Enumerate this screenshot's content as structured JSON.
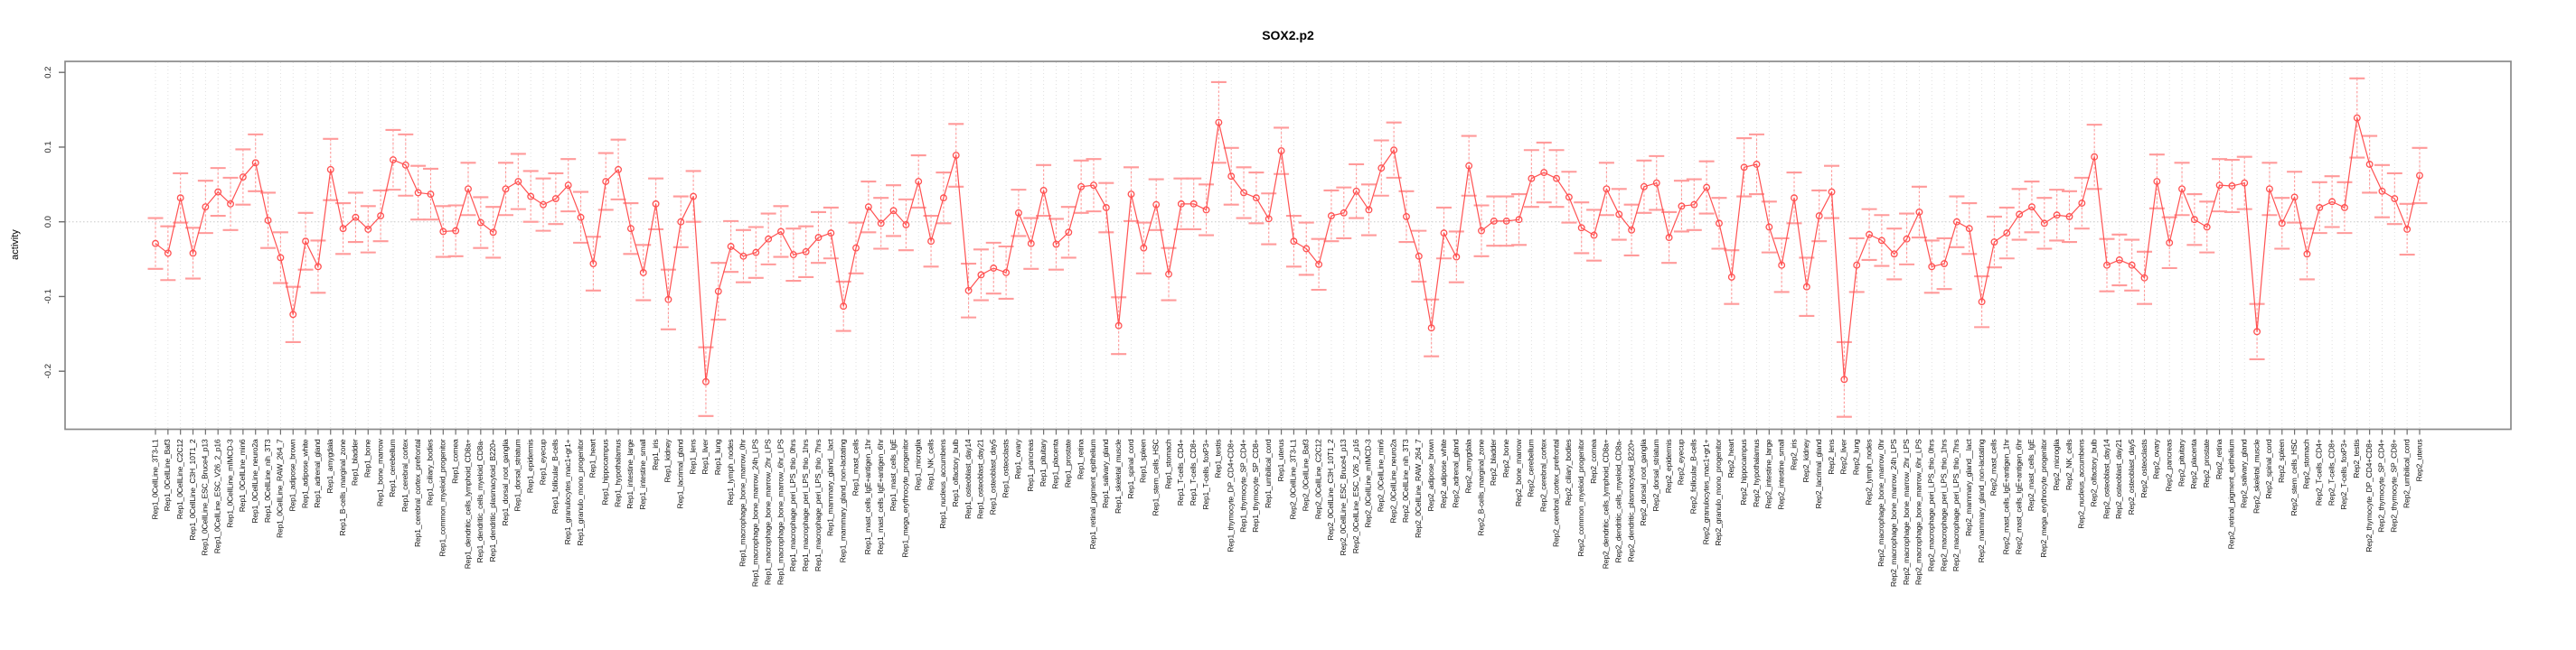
{
  "page": {
    "background": "#ffffff"
  },
  "chart_data": {
    "type": "line",
    "title": "SOX2.p2",
    "ylabel": "activity",
    "xlabel": "",
    "ylim": [
      -0.28,
      0.215
    ],
    "ytick_values": [
      -0.2,
      -0.1,
      0.0,
      0.1,
      0.2
    ],
    "ytick_labels": [
      "-0.2",
      "-0.1",
      "0.0",
      "0.1",
      "0.2"
    ],
    "grid": "dotted vertical gridline at every category; dotted horizontal line at y=0",
    "legend": "none",
    "marker": "open-circle",
    "error_bar_style": "dashed vertical line with solid caps",
    "colors": {
      "series": "#ff5252",
      "error_bars": "#ff9a9a",
      "axis": "#8a8a8a",
      "tick": "#6e6e6e",
      "grid": "#dcdcdc",
      "zero_line": "#c8c8c8",
      "text": "#000000"
    },
    "categories": [
      "Rep1_0CellLine_3T3-L1",
      "Rep1_0CellLine_Baf3",
      "Rep1_0CellLine_C2C12",
      "Rep1_0CellLine_C3H_10T1_2",
      "Rep1_0CellLine_ESC_Bruce4_p13",
      "Rep1_0CellLine_ESC_V26_2_p16",
      "Rep1_0CellLine_mIMCD-3",
      "Rep1_0CellLine_min6",
      "Rep1_0CellLine_neuro2a",
      "Rep1_0CellLine_nih_3T3",
      "Rep1_0CellLine_RAW_264_7",
      "Rep1_adipose_brown",
      "Rep1_adipose_white",
      "Rep1_adrenal_gland",
      "Rep1_amygdala",
      "Rep1_B-cells_marginal_zone",
      "Rep1_bladder",
      "Rep1_bone",
      "Rep1_bone_marrow",
      "Rep1_cerebellum",
      "Rep1_cerebral_cortex",
      "Rep1_cerebral_cortex_prefrontal",
      "Rep1_ciliary_bodies",
      "Rep1_common_myeloid_progenitor",
      "Rep1_cornea",
      "Rep1_dendritic_cells_lymphoid_CD8a+",
      "Rep1_dendritic_cells_myeloid_CD8a-",
      "Rep1_dendritic_plasmacytoid_B220+",
      "Rep1_dorsal_root_ganglia",
      "Rep1_dorsal_striatum",
      "Rep1_epidermis",
      "Rep1_eyecup",
      "Rep1_follicular_B-cells",
      "Rep1_granulocytes_mac1+gr1+",
      "Rep1_granulo_mono_progenitor",
      "Rep1_heart",
      "Rep1_hippocampus",
      "Rep1_hypothalamus",
      "Rep1_intestine_large",
      "Rep1_intestine_small",
      "Rep1_iris",
      "Rep1_kidney",
      "Rep1_lacrimal_gland",
      "Rep1_lens",
      "Rep1_liver",
      "Rep1_lung",
      "Rep1_lymph_nodes",
      "Rep1_macrophage_bone_marrow_0hr",
      "Rep1_macrophage_bone_marrow_24h_LPS",
      "Rep1_macrophage_bone_marrow_2hr_LPS",
      "Rep1_macrophage_bone_marrow_6hr_LPS",
      "Rep1_macrophage_peri_LPS_thio_0hrs",
      "Rep1_macrophage_peri_LPS_thio_1hrs",
      "Rep1_macrophage_peri_LPS_thio_7hrs",
      "Rep1_mammary_gland__lact",
      "Rep1_mammary_gland_non-lactating",
      "Rep1_mast_cells",
      "Rep1_mast_cells_IgE+antigen_1hr",
      "Rep1_mast_cells_IgE+antigen_6hr",
      "Rep1_mast_cells_IgE",
      "Rep1_mega_erythrocyte_progenitor",
      "Rep1_microglia",
      "Rep1_NK_cells",
      "Rep1_nucleus_accumbens",
      "Rep1_olfactory_bulb",
      "Rep1_osteoblast_day14",
      "Rep1_osteoblast_day21",
      "Rep1_osteoblast_day5",
      "Rep1_osteoclasts",
      "Rep1_ovary",
      "Rep1_pancreas",
      "Rep1_pituitary",
      "Rep1_placenta",
      "Rep1_prostate",
      "Rep1_retina",
      "Rep1_retinal_pigment_epithelium",
      "Rep1_salivary_gland",
      "Rep1_skeletal_muscle",
      "Rep1_spinal_cord",
      "Rep1_spleen",
      "Rep1_stem_cells_HSC",
      "Rep1_stomach",
      "Rep1_T-cells_CD4+",
      "Rep1_T-cells_CD8+",
      "Rep1_T-cells_foxP3+",
      "Rep1_testis",
      "Rep1_thymocyte_DP_CD4+CD8+",
      "Rep1_thymocyte_SP_CD4+",
      "Rep1_thymocyte_SP_CD8+",
      "Rep1_umbilical_cord",
      "Rep1_uterus",
      "Rep2_0CellLine_3T3-L1",
      "Rep2_0CellLine_Baf3",
      "Rep2_0CellLine_C2C12",
      "Rep2_0CellLine_C3H_10T1_2",
      "Rep2_0CellLine_ESC_Bruce4_p13",
      "Rep2_0CellLine_ESC_V26_2_p16",
      "Rep2_0CellLine_mIMCD-3",
      "Rep2_0CellLine_min6",
      "Rep2_0CellLine_neuro2a",
      "Rep2_0CellLine_nih_3T3",
      "Rep2_0CellLine_RAW_264_7",
      "Rep2_adipose_brown",
      "Rep2_adipose_white",
      "Rep2_adrenal_gland",
      "Rep2_amygdala",
      "Rep2_B-cells_marginal_zone",
      "Rep2_bladder",
      "Rep2_bone",
      "Rep2_bone_marrow",
      "Rep2_cerebellum",
      "Rep2_cerebral_cortex",
      "Rep2_cerebral_cortex_prefrontal",
      "Rep2_ciliary_bodies",
      "Rep2_common_myeloid_progenitor",
      "Rep2_cornea",
      "Rep2_dendritic_cells_lymphoid_CD8a+",
      "Rep2_dendritic_cells_myeloid_CD8a-",
      "Rep2_dendritic_plasmacytoid_B220+",
      "Rep2_dorsal_root_ganglia",
      "Rep2_dorsal_striatum",
      "Rep2_epidermis",
      "Rep2_eyecup",
      "Rep2_follicular_B-cells",
      "Rep2_granulocytes_mac1+gr1+",
      "Rep2_granulo_mono_progenitor",
      "Rep2_heart",
      "Rep2_hippocampus",
      "Rep2_hypothalamus",
      "Rep2_intestine_large",
      "Rep2_intestine_small",
      "Rep2_iris",
      "Rep2_kidney",
      "Rep2_lacrimal_gland",
      "Rep2_lens",
      "Rep2_liver",
      "Rep2_lung",
      "Rep2_lymph_nodes",
      "Rep2_macrophage_bone_marrow_0hr",
      "Rep2_macrophage_bone_marrow_24h_LPS",
      "Rep2_macrophage_bone_marrow_2hr_LPS",
      "Rep2_macrophage_bone_marrow_6hr_LPS",
      "Rep2_macrophage_peri_LPS_thio_0hrs",
      "Rep2_macrophage_peri_LPS_thio_1hrs",
      "Rep2_macrophage_peri_LPS_thio_7hrs",
      "Rep2_mammary_gland__lact",
      "Rep2_mammary_gland_non-lactating",
      "Rep2_mast_cells",
      "Rep2_mast_cells_IgE+antigen_1hr",
      "Rep2_mast_cells_IgE+antigen_6hr",
      "Rep2_mast_cells_IgE",
      "Rep2_mega_erythrocyte_progenitor",
      "Rep2_microglia",
      "Rep2_NK_cells",
      "Rep2_nucleus_accumbens",
      "Rep2_olfactory_bulb",
      "Rep2_osteoblast_day14",
      "Rep2_osteoblast_day21",
      "Rep2_osteoblast_day5",
      "Rep2_osteoclasts",
      "Rep2_ovary",
      "Rep2_pancreas",
      "Rep2_pituitary",
      "Rep2_placenta",
      "Rep2_prostate",
      "Rep2_retina",
      "Rep2_retinal_pigment_epithelium",
      "Rep2_salivary_gland",
      "Rep2_skeletal_muscle",
      "Rep2_spinal_cord",
      "Rep2_spleen",
      "Rep2_stem_cells_HSC",
      "Rep2_stomach",
      "Rep2_T-cells_CD4+",
      "Rep2_T-cells_CD8+",
      "Rep2_T-cells_foxP3+",
      "Rep2_testis",
      "Rep2_thymocyte_DP_CD4+CD8+",
      "Rep2_thymocyte_SP_CD4+",
      "Rep2_thymocyte_SP_CD8+",
      "Rep2_umbilical_cord",
      "Rep2_uterus"
    ],
    "series": [
      {
        "name": "activity",
        "values": [
          -0.029,
          -0.042,
          0.032,
          -0.042,
          0.02,
          0.04,
          0.024,
          0.06,
          0.079,
          0.002,
          -0.048,
          -0.124,
          -0.026,
          -0.06,
          0.07,
          -0.009,
          0.006,
          -0.01,
          0.008,
          0.083,
          0.076,
          0.039,
          0.037,
          -0.013,
          -0.012,
          0.044,
          -0.001,
          -0.014,
          0.044,
          0.054,
          0.034,
          0.023,
          0.031,
          0.049,
          0.006,
          -0.056,
          0.054,
          0.07,
          -0.009,
          -0.068,
          0.024,
          -0.104,
          0.0,
          0.034,
          -0.214,
          -0.093,
          -0.033,
          -0.046,
          -0.041,
          -0.023,
          -0.013,
          -0.044,
          -0.04,
          -0.021,
          -0.015,
          -0.113,
          -0.035,
          0.02,
          -0.002,
          0.015,
          -0.004,
          0.054,
          -0.026,
          0.032,
          0.089,
          -0.092,
          -0.071,
          -0.062,
          -0.068,
          0.012,
          -0.029,
          0.042,
          -0.03,
          -0.014,
          0.047,
          0.049,
          0.019,
          -0.139,
          0.037,
          -0.035,
          0.023,
          -0.07,
          0.024,
          0.024,
          0.016,
          0.133,
          0.061,
          0.039,
          0.032,
          0.004,
          0.095,
          -0.026,
          -0.036,
          -0.057,
          0.008,
          0.012,
          0.041,
          0.016,
          0.072,
          0.096,
          0.007,
          -0.046,
          -0.142,
          -0.015,
          -0.047,
          0.075,
          -0.012,
          0.001,
          0.001,
          0.003,
          0.058,
          0.066,
          0.058,
          0.033,
          -0.008,
          -0.018,
          0.044,
          0.01,
          -0.011,
          0.047,
          0.052,
          -0.021,
          0.021,
          0.023,
          0.046,
          -0.002,
          -0.074,
          0.073,
          0.077,
          -0.007,
          -0.058,
          0.032,
          -0.087,
          0.008,
          0.04,
          -0.211,
          -0.058,
          -0.017,
          -0.025,
          -0.043,
          -0.023,
          0.013,
          -0.06,
          -0.056,
          0.0,
          -0.009,
          -0.107,
          -0.027,
          -0.015,
          0.01,
          0.02,
          -0.002,
          0.009,
          0.007,
          0.025,
          0.087,
          -0.058,
          -0.051,
          -0.058,
          -0.075,
          0.054,
          -0.028,
          0.044,
          0.003,
          -0.007,
          0.049,
          0.048,
          0.052,
          -0.147,
          0.044,
          -0.002,
          0.033,
          -0.043,
          0.019,
          0.027,
          0.019,
          0.139,
          0.077,
          0.041,
          0.031,
          -0.01,
          0.062
        ],
        "errors": [
          0.034,
          0.036,
          0.033,
          0.034,
          0.035,
          0.032,
          0.035,
          0.037,
          0.038,
          0.037,
          0.034,
          0.037,
          0.038,
          0.035,
          0.041,
          0.034,
          0.033,
          0.031,
          0.034,
          0.04,
          0.041,
          0.036,
          0.034,
          0.034,
          0.034,
          0.035,
          0.034,
          0.034,
          0.035,
          0.037,
          0.034,
          0.035,
          0.034,
          0.035,
          0.034,
          0.036,
          0.038,
          0.04,
          0.034,
          0.037,
          0.034,
          0.04,
          0.034,
          0.034,
          0.046,
          0.038,
          0.034,
          0.035,
          0.034,
          0.034,
          0.034,
          0.035,
          0.034,
          0.034,
          0.034,
          0.033,
          0.034,
          0.034,
          0.034,
          0.034,
          0.034,
          0.035,
          0.034,
          0.034,
          0.042,
          0.036,
          0.034,
          0.034,
          0.035,
          0.031,
          0.034,
          0.034,
          0.034,
          0.034,
          0.035,
          0.035,
          0.033,
          0.038,
          0.036,
          0.034,
          0.034,
          0.035,
          0.034,
          0.034,
          0.034,
          0.054,
          0.038,
          0.034,
          0.034,
          0.034,
          0.031,
          0.034,
          0.035,
          0.034,
          0.034,
          0.034,
          0.036,
          0.034,
          0.037,
          0.037,
          0.034,
          0.034,
          0.038,
          0.034,
          0.034,
          0.04,
          0.034,
          0.033,
          0.033,
          0.034,
          0.038,
          0.04,
          0.038,
          0.034,
          0.034,
          0.034,
          0.035,
          0.034,
          0.034,
          0.035,
          0.036,
          0.034,
          0.034,
          0.034,
          0.035,
          0.034,
          0.036,
          0.039,
          0.04,
          0.034,
          0.036,
          0.034,
          0.039,
          0.034,
          0.035,
          0.05,
          0.036,
          0.034,
          0.034,
          0.034,
          0.034,
          0.034,
          0.035,
          0.034,
          0.034,
          0.034,
          0.034,
          0.034,
          0.034,
          0.034,
          0.034,
          0.034,
          0.034,
          0.034,
          0.034,
          0.043,
          0.035,
          0.034,
          0.034,
          0.035,
          0.036,
          0.034,
          0.035,
          0.034,
          0.034,
          0.035,
          0.035,
          0.035,
          0.037,
          0.035,
          0.034,
          0.034,
          0.034,
          0.034,
          0.034,
          0.034,
          0.053,
          0.038,
          0.035,
          0.034,
          0.034,
          0.037
        ]
      }
    ]
  }
}
